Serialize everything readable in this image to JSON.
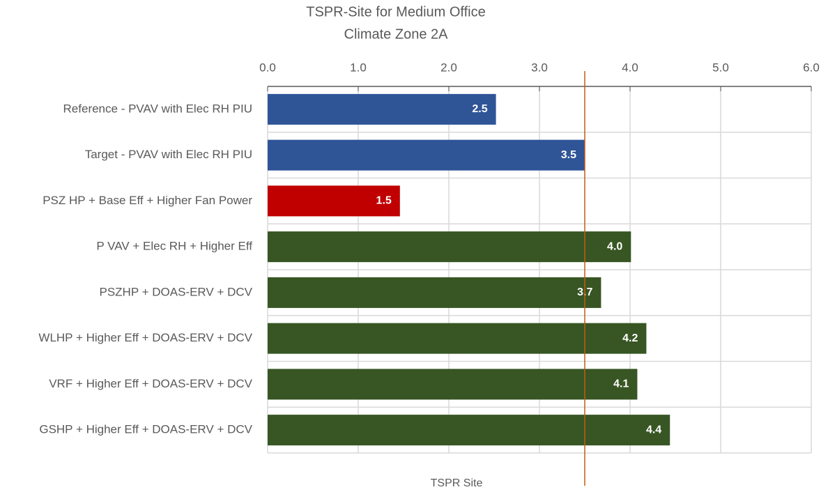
{
  "chart_data": {
    "type": "hbar",
    "title": [
      "TSPR-Site for Medium Office",
      "Climate Zone 2A"
    ],
    "xlabel": "TSPR Site",
    "categories": [
      "Reference - PVAV with Elec RH PIU",
      "Target - PVAV with Elec RH PIU",
      "PSZ HP + Base Eff + Higher Fan Power",
      "P VAV + Elec RH + Higher Eff",
      "PSZHP + DOAS-ERV + DCV",
      "WLHP + Higher Eff + DOAS-ERV + DCV",
      "VRF + Higher Eff + DOAS-ERV + DCV",
      "GSHP + Higher Eff + DOAS-ERV + DCV"
    ],
    "values": [
      2.52,
      3.5,
      1.46,
      4.01,
      3.68,
      4.18,
      4.08,
      4.44
    ],
    "value_labels": [
      "2.5",
      "3.5",
      "1.5",
      "4.0",
      "3.7",
      "4.2",
      "4.1",
      "4.4"
    ],
    "colors": [
      "#2f5597",
      "#2f5597",
      "#c00000",
      "#375623",
      "#375623",
      "#375623",
      "#375623",
      "#375623"
    ],
    "xlim": [
      0,
      6
    ],
    "xticks": [
      {
        "value": 0,
        "label": "0.0"
      },
      {
        "value": 1,
        "label": "1.0"
      },
      {
        "value": 2,
        "label": "2.0"
      },
      {
        "value": 3,
        "label": "3.0"
      },
      {
        "value": 4,
        "label": "4.0"
      },
      {
        "value": 5,
        "label": "5.0"
      },
      {
        "value": 6,
        "label": "6.0"
      }
    ],
    "reference_line": {
      "value": 3.5,
      "color": "#c55a11"
    },
    "grid": true,
    "axis_position": "top"
  }
}
